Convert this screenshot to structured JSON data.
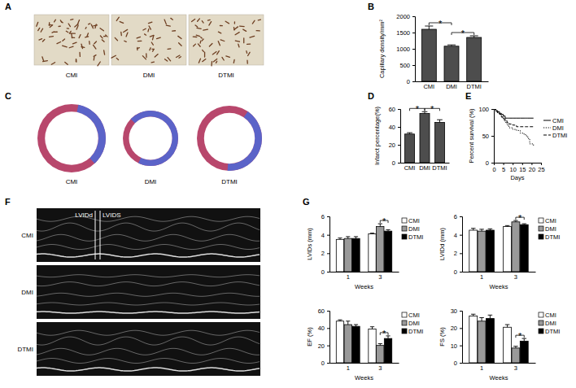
{
  "chart_data": [
    {
      "type": "image",
      "title": "A",
      "categories": [
        "CMI",
        "DMI",
        "DTMI"
      ]
    },
    {
      "type": "bar",
      "title": "B",
      "y_label": "Capillary density/mm²",
      "categories": [
        "CMI",
        "DMI",
        "DTMI"
      ],
      "values": [
        1600,
        1080,
        1350
      ],
      "errors": [
        100,
        40,
        50
      ],
      "color": "#4d4d4d",
      "ylim": [
        0,
        2000
      ],
      "yticks": [
        0,
        500,
        1000,
        1500,
        2000
      ],
      "annotations": [
        {
          "text": "*",
          "between": [
            "CMI",
            "DMI"
          ]
        },
        {
          "text": "*",
          "between": [
            "DMI",
            "DTMI"
          ]
        }
      ]
    },
    {
      "type": "image",
      "title": "C",
      "categories": [
        "CMI",
        "DMI",
        "DTMI"
      ]
    },
    {
      "type": "bar",
      "title": "D",
      "y_label": "Infarct percentage(%)",
      "categories": [
        "CMI",
        "DMI",
        "DTMI"
      ],
      "values": [
        32,
        55,
        45
      ],
      "errors": [
        1.5,
        2,
        3
      ],
      "color": "#4d4d4d",
      "ylim": [
        0,
        60
      ],
      "yticks": [
        0,
        20,
        40,
        60
      ],
      "annotations": [
        {
          "text": "*",
          "between": [
            "CMI",
            "DMI"
          ]
        },
        {
          "text": "*",
          "between": [
            "DMI",
            "DTMI"
          ]
        }
      ]
    },
    {
      "type": "line",
      "title": "E",
      "x_label": "Days",
      "y_label": "Percent survival (%)",
      "x": [
        0,
        1,
        2,
        3,
        4,
        5,
        6,
        7,
        8,
        10,
        12,
        14,
        16,
        17,
        18,
        19,
        21
      ],
      "xlim": [
        0,
        25
      ],
      "xticks": [
        0,
        5,
        10,
        15,
        20,
        25
      ],
      "ylim": [
        0,
        100
      ],
      "yticks": [
        0,
        50,
        100
      ],
      "legend": "right",
      "series": [
        {
          "name": "CMI",
          "color": "#000000",
          "line_style": "solid",
          "values": [
            100,
            97,
            95,
            92,
            90,
            87,
            83,
            83,
            83,
            83,
            83,
            83,
            83,
            83,
            83,
            83,
            83
          ]
        },
        {
          "name": "DMI",
          "color": "#000000",
          "line_style": "dotted",
          "values": [
            100,
            95,
            92,
            90,
            85,
            80,
            75,
            70,
            65,
            62,
            60,
            55,
            52,
            50,
            45,
            35,
            30
          ]
        },
        {
          "name": "DTMI",
          "color": "#000000",
          "line_style": "dashed",
          "values": [
            100,
            96,
            93,
            90,
            85,
            82,
            78,
            75,
            72,
            70,
            67,
            67,
            67,
            67,
            67,
            67,
            67
          ]
        }
      ]
    },
    {
      "type": "image",
      "title": "F",
      "categories": [
        "CMI",
        "DMI",
        "DTMI"
      ],
      "annotations": [
        "LVIDd",
        "LVIDS"
      ]
    },
    {
      "type": "bar",
      "title": "G",
      "x_label": "Weeks",
      "y_label": "LVIDs (mm)",
      "categories": [
        "1",
        "3"
      ],
      "legend": "right",
      "ylim": [
        0,
        6
      ],
      "yticks": [
        0,
        2,
        4,
        6
      ],
      "series": [
        {
          "name": "CMI",
          "color": "#ffffff",
          "values": [
            3.5,
            4.1
          ],
          "errors": [
            0.15,
            0.08
          ]
        },
        {
          "name": "DMI",
          "color": "#999999",
          "values": [
            3.6,
            4.9
          ],
          "errors": [
            0.2,
            0.3
          ]
        },
        {
          "name": "DTMI",
          "color": "#000000",
          "values": [
            3.6,
            4.4
          ],
          "errors": [
            0.2,
            0.15
          ]
        }
      ],
      "annotations": [
        {
          "text": "*",
          "category": "3",
          "between": [
            "DMI",
            "DTMI"
          ]
        }
      ]
    },
    {
      "type": "bar",
      "x_label": "Weeks",
      "y_label": "LVIDd (mm)",
      "categories": [
        "1",
        "3"
      ],
      "legend": "right",
      "ylim": [
        0,
        6
      ],
      "yticks": [
        0,
        2,
        4,
        6
      ],
      "series": [
        {
          "name": "CMI",
          "color": "#ffffff",
          "values": [
            4.5,
            4.9
          ],
          "errors": [
            0.2,
            0.1
          ]
        },
        {
          "name": "DMI",
          "color": "#999999",
          "values": [
            4.4,
            5.4
          ],
          "errors": [
            0.2,
            0.15
          ]
        },
        {
          "name": "DTMI",
          "color": "#000000",
          "values": [
            4.5,
            5.1
          ],
          "errors": [
            0.15,
            0.1
          ]
        }
      ],
      "annotations": [
        {
          "text": "*",
          "category": "3",
          "between": [
            "DMI",
            "DTMI"
          ]
        }
      ]
    },
    {
      "type": "bar",
      "x_label": "Weeks",
      "y_label": "EF (%)",
      "categories": [
        "1",
        "3"
      ],
      "legend": "right",
      "ylim": [
        0,
        60
      ],
      "yticks": [
        0,
        20,
        40,
        60
      ],
      "series": [
        {
          "name": "CMI",
          "color": "#ffffff",
          "values": [
            48,
            39
          ],
          "errors": [
            1.5,
            2.5
          ]
        },
        {
          "name": "DMI",
          "color": "#999999",
          "values": [
            44,
            20
          ],
          "errors": [
            4,
            2
          ]
        },
        {
          "name": "DTMI",
          "color": "#000000",
          "values": [
            42,
            28
          ],
          "errors": [
            2,
            3
          ]
        }
      ],
      "annotations": [
        {
          "text": "*",
          "category": "3",
          "between": [
            "DMI",
            "DTMI"
          ]
        }
      ]
    },
    {
      "type": "bar",
      "x_label": "Weeks",
      "y_label": "FS (%)",
      "categories": [
        "1",
        "3"
      ],
      "legend": "right",
      "ylim": [
        0,
        30
      ],
      "yticks": [
        0,
        10,
        20,
        30
      ],
      "series": [
        {
          "name": "CMI",
          "color": "#ffffff",
          "values": [
            27,
            20.5
          ],
          "errors": [
            1,
            1.5
          ]
        },
        {
          "name": "DMI",
          "color": "#999999",
          "values": [
            24,
            8.5
          ],
          "errors": [
            2,
            1
          ]
        },
        {
          "name": "DTMI",
          "color": "#000000",
          "values": [
            25.5,
            12.5
          ],
          "errors": [
            2,
            1.5
          ]
        }
      ],
      "annotations": [
        {
          "text": "*",
          "category": "3",
          "between": [
            "DMI",
            "DTMI"
          ]
        }
      ]
    }
  ]
}
